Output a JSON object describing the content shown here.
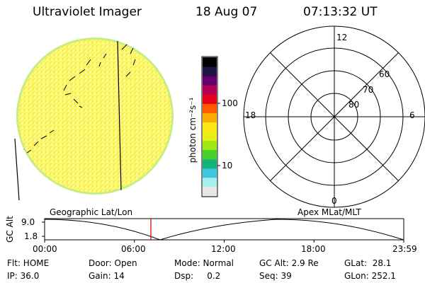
{
  "header": {
    "title": "Ultraviolet Imager",
    "date": "18 Aug 07",
    "time": "07:13:32 UT"
  },
  "colorbar": {
    "unit_label": "photon cm⁻²s⁻¹",
    "tick_100": "100",
    "tick_10": "10",
    "colors": [
      "#e6e6e6",
      "#a8f0f0",
      "#3cc8dc",
      "#14b478",
      "#46d228",
      "#a0e614",
      "#e6f014",
      "#ffe614",
      "#ffaa00",
      "#ff5a00",
      "#e6001e",
      "#b40050",
      "#64006e",
      "#1e1446",
      "#000000"
    ]
  },
  "polar_plot": {
    "mlt_top": "12",
    "mlt_left": "18",
    "mlt_right": "6",
    "mlt_bottom": "0",
    "lat_60": "60",
    "lat_70": "70",
    "lat_80": "80"
  },
  "labels": {
    "geographic": "Geographic Lat/Lon",
    "apex": "Apex MLat/MLT"
  },
  "altitude_plot": {
    "ylabel": "GC Alt",
    "ymax": "9.0",
    "ymin": "1.8",
    "ticks": [
      "00:00",
      "06:00",
      "12:00",
      "18:00",
      "23:59"
    ]
  },
  "info": {
    "row1": {
      "flt": "Flt: HOME",
      "door": "Door: Open",
      "mode": "Mode: Normal",
      "gcalt": "GC Alt: 2.9 Re",
      "glat": "GLat:  28.1"
    },
    "row2": {
      "ip": "IP: 36.0",
      "gain": "Gain: 14",
      "dsp": "Dsp:     0.2",
      "seq": "Seq: 39",
      "glon": "GLon: 252.1"
    }
  }
}
